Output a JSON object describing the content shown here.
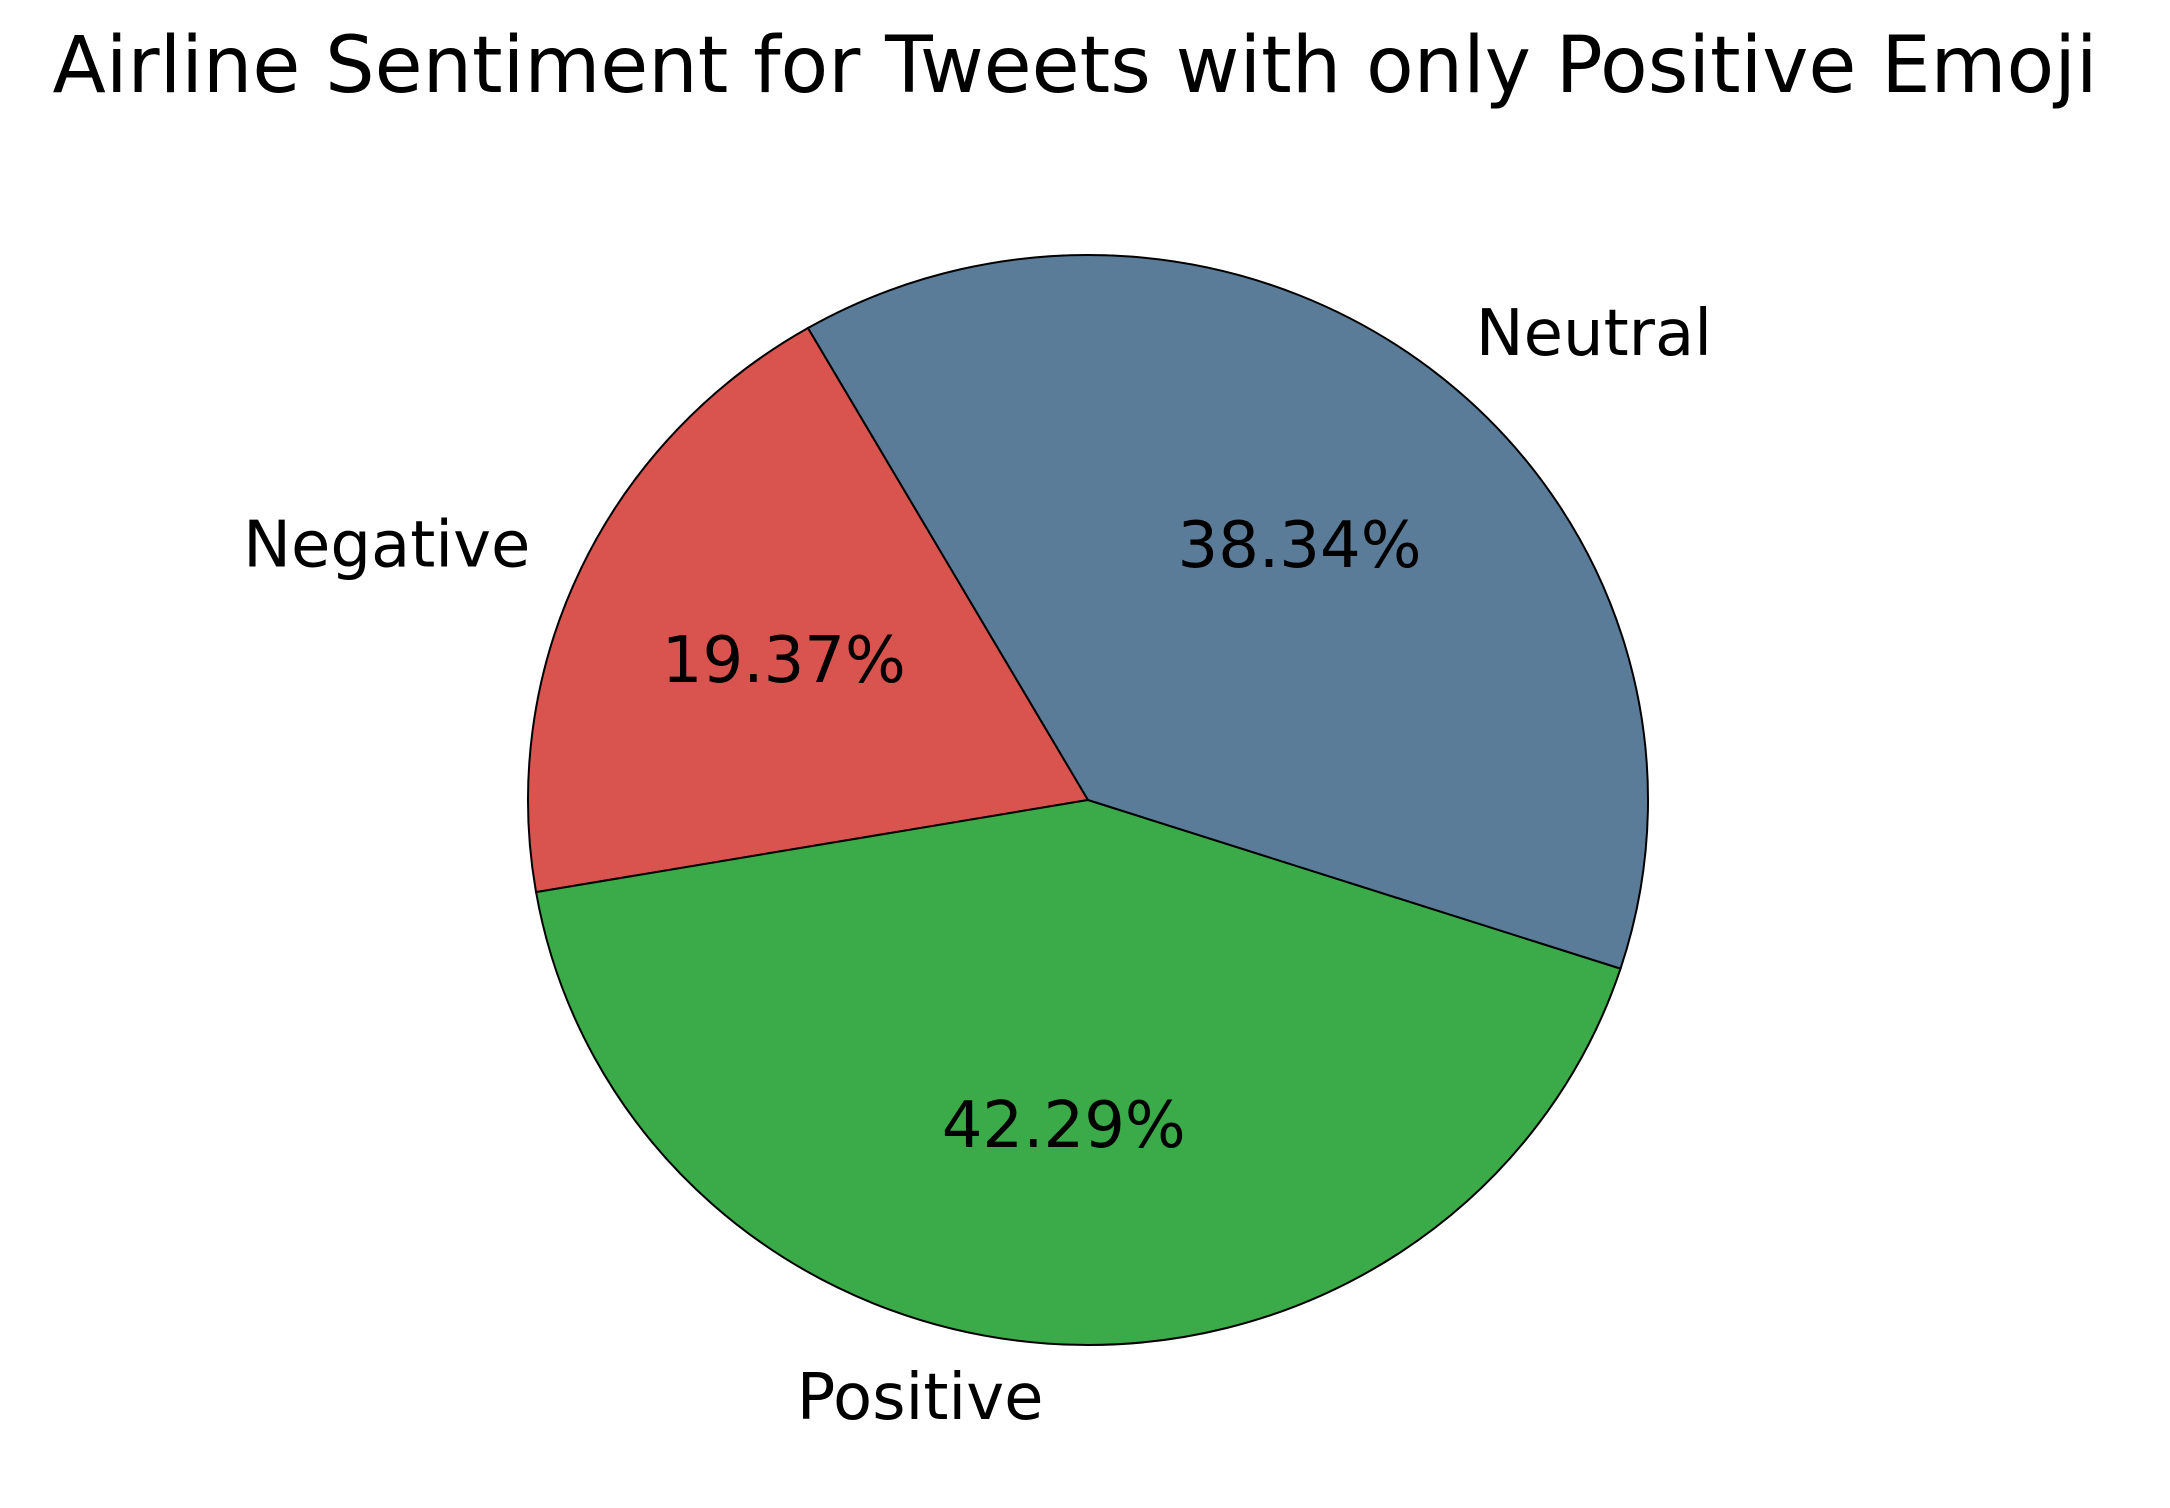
{
  "chart_data": {
    "type": "pie",
    "title": "Airline Sentiment for Tweets with only Positive Emoji",
    "start_angle_deg": 120,
    "direction": "counterclockwise",
    "slices": [
      {
        "label": "Negative",
        "value": 19.37,
        "pct_label": "19.37%",
        "color": "#d9534f"
      },
      {
        "label": "Positive",
        "value": 42.29,
        "pct_label": "42.29%",
        "color": "#3aab48"
      },
      {
        "label": "Neutral",
        "value": 38.34,
        "pct_label": "38.34%",
        "color": "#5b7c99"
      }
    ]
  }
}
